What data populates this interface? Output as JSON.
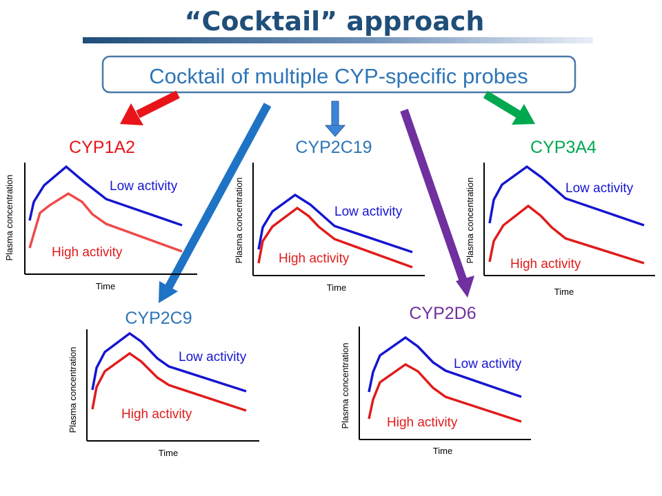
{
  "title": "“Cocktail” approach",
  "probe_box_text": "Cocktail of multiple CYP-specific probes",
  "colors": {
    "title": "#1f4e79",
    "box_border": "#4a78a8",
    "low_activity": "#1515d0",
    "high_activity": "#e01b1b"
  },
  "panels": [
    {
      "enzyme": "CYP1A2",
      "enzyme_color": "#e8141a",
      "arrow_color": "#e8141a",
      "high_line_color": "#ee4a4a",
      "y_label": "Plasma concentration",
      "x_label": "Time",
      "low_label": "Low activity",
      "high_label": "High activity"
    },
    {
      "enzyme": "CYP2C19",
      "enzyme_color": "#2e75b6",
      "arrow_color": "#3d85d8",
      "high_line_color": "#e01b1b",
      "y_label": "Plasma concentration",
      "x_label": "Time",
      "low_label": "Low activity",
      "high_label": "High activity"
    },
    {
      "enzyme": "CYP3A4",
      "enzyme_color": "#00a84f",
      "arrow_color": "#00a84f",
      "high_line_color": "#e01b1b",
      "y_label": "Plasma concentration",
      "x_label": "Time",
      "low_label": "Low activity",
      "high_label": "High activity"
    },
    {
      "enzyme": "CYP2C9",
      "enzyme_color": "#2e75b6",
      "arrow_color": "#1f73c4",
      "high_line_color": "#e01b1b",
      "y_label": "Plasma concentration",
      "x_label": "Time",
      "low_label": "Low activity",
      "high_label": "High activity"
    },
    {
      "enzyme": "CYP2D6",
      "enzyme_color": "#7030a0",
      "arrow_color": "#7030a0",
      "high_line_color": "#e01b1b",
      "y_label": "Plasma concentration",
      "x_label": "Time",
      "low_label": "Low activity",
      "high_label": "High activity"
    }
  ]
}
